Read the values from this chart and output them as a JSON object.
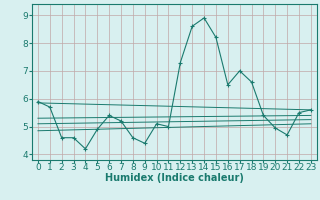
{
  "x": [
    0,
    1,
    2,
    3,
    4,
    5,
    6,
    7,
    8,
    9,
    10,
    11,
    12,
    13,
    14,
    15,
    16,
    17,
    18,
    19,
    20,
    21,
    22,
    23
  ],
  "y_main": [
    5.9,
    5.7,
    4.6,
    4.6,
    4.2,
    4.9,
    5.4,
    5.2,
    4.6,
    4.4,
    5.1,
    5.0,
    7.3,
    8.6,
    8.9,
    8.2,
    6.5,
    7.0,
    6.6,
    5.4,
    4.95,
    4.7,
    5.5,
    5.6
  ],
  "trend_lines": [
    {
      "x0": 0,
      "y0": 5.85,
      "x1": 23,
      "y1": 5.6
    },
    {
      "x0": 0,
      "y0": 5.3,
      "x1": 23,
      "y1": 5.4
    },
    {
      "x0": 0,
      "y0": 5.1,
      "x1": 23,
      "y1": 5.25
    },
    {
      "x0": 0,
      "y0": 4.85,
      "x1": 23,
      "y1": 5.1
    }
  ],
  "color": "#1a7a6e",
  "bg_color": "#d8f0f0",
  "grid_color": "#c0a8a8",
  "xlabel": "Humidex (Indice chaleur)",
  "ylabel_ticks": [
    4,
    5,
    6,
    7,
    8,
    9
  ],
  "xlim": [
    -0.5,
    23.5
  ],
  "ylim": [
    3.8,
    9.4
  ],
  "xlabel_fontsize": 7.0,
  "tick_fontsize": 6.5
}
